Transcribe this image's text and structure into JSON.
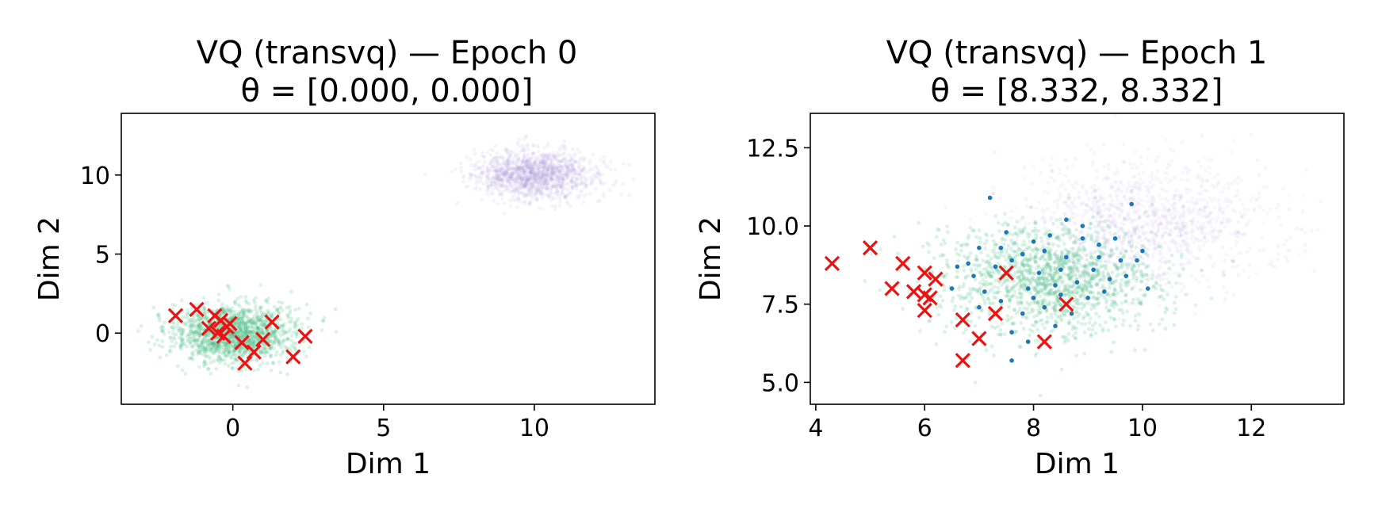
{
  "chart_data": [
    {
      "type": "scatter",
      "title": "VQ (transvq) — Epoch 0",
      "subtitle": "θ = [0.000, 0.000]",
      "xlabel": "Dim 1",
      "ylabel": "Dim 2",
      "xlim": [
        -3.7,
        14.0
      ],
      "ylim": [
        -4.5,
        13.9
      ],
      "xticks": [
        0,
        5,
        10
      ],
      "xtick_labels": [
        "0",
        "5",
        "10"
      ],
      "yticks": [
        0,
        5,
        10
      ],
      "ytick_labels": [
        "0",
        "5",
        "10"
      ],
      "grid": false,
      "colors": {
        "green": "#4cbf85",
        "purple": "#a88fdb",
        "blue": "#1f77b4",
        "red": "#ee1111"
      },
      "clouds": [
        {
          "color": "green",
          "center": [
            0,
            0
          ],
          "spread": [
            1.0,
            0.9
          ],
          "n": 1500,
          "opacity": 0.2
        },
        {
          "color": "purple",
          "center": [
            10,
            10
          ],
          "spread": [
            1.0,
            0.8
          ],
          "n": 1400,
          "opacity": 0.1
        }
      ],
      "blue_points": [],
      "centroids": [
        [
          -1.9,
          1.1
        ],
        [
          -1.2,
          1.5
        ],
        [
          -0.8,
          0.3
        ],
        [
          -0.6,
          1.1
        ],
        [
          -0.5,
          0.0
        ],
        [
          -0.4,
          0.8
        ],
        [
          -0.3,
          -0.2
        ],
        [
          -0.2,
          0.4
        ],
        [
          -0.1,
          0.6
        ],
        [
          0.3,
          -0.6
        ],
        [
          0.4,
          -1.9
        ],
        [
          0.7,
          -1.2
        ],
        [
          1.0,
          -0.4
        ],
        [
          1.3,
          0.7
        ],
        [
          2.0,
          -1.5
        ],
        [
          2.4,
          -0.2
        ]
      ]
    },
    {
      "type": "scatter",
      "title": "VQ (transvq) — Epoch 1",
      "subtitle": "θ = [8.332, 8.332]",
      "xlabel": "Dim 1",
      "ylabel": "Dim 2",
      "xlim": [
        3.9,
        13.7
      ],
      "ylim": [
        4.3,
        13.6
      ],
      "xticks": [
        4,
        6,
        8,
        10,
        12
      ],
      "xtick_labels": [
        "4",
        "6",
        "8",
        "10",
        "12"
      ],
      "yticks": [
        5.0,
        7.5,
        10.0,
        12.5
      ],
      "ytick_labels": [
        "5.0",
        "7.5",
        "10.0",
        "12.5"
      ],
      "grid": false,
      "colors": {
        "green": "#4cbf85",
        "purple": "#a88fdb",
        "blue": "#1f77b4",
        "red": "#ee1111"
      },
      "clouds": [
        {
          "color": "green",
          "center": [
            8.3,
            8.3
          ],
          "spread": [
            1.0,
            0.9
          ],
          "n": 1500,
          "opacity": 0.2
        },
        {
          "color": "purple",
          "center": [
            10,
            10
          ],
          "spread": [
            1.1,
            1.0
          ],
          "n": 1300,
          "opacity": 0.08
        }
      ],
      "blue_points": [
        [
          7.2,
          10.9
        ],
        [
          7.5,
          9.8
        ],
        [
          6.9,
          8.4
        ],
        [
          6.5,
          8.0
        ],
        [
          7.0,
          9.3
        ],
        [
          7.6,
          8.9
        ],
        [
          8.0,
          9.5
        ],
        [
          8.3,
          9.7
        ],
        [
          8.6,
          10.2
        ],
        [
          8.9,
          9.6
        ],
        [
          9.2,
          9.0
        ],
        [
          9.6,
          8.9
        ],
        [
          9.8,
          10.7
        ],
        [
          10.1,
          8.0
        ],
        [
          9.4,
          8.3
        ],
        [
          8.8,
          8.2
        ],
        [
          8.5,
          7.8
        ],
        [
          8.2,
          7.4
        ],
        [
          7.8,
          7.2
        ],
        [
          7.4,
          7.6
        ],
        [
          7.1,
          7.9
        ],
        [
          6.8,
          8.8
        ],
        [
          7.6,
          6.6
        ],
        [
          7.9,
          6.3
        ],
        [
          8.4,
          6.8
        ],
        [
          8.7,
          7.2
        ],
        [
          9.0,
          7.7
        ],
        [
          9.3,
          7.9
        ],
        [
          9.7,
          8.4
        ],
        [
          10.0,
          9.2
        ],
        [
          8.1,
          8.5
        ],
        [
          7.3,
          8.7
        ],
        [
          8.6,
          9.0
        ],
        [
          9.1,
          8.6
        ],
        [
          7.8,
          9.1
        ],
        [
          8.4,
          8.1
        ],
        [
          7.0,
          7.4
        ],
        [
          9.5,
          9.6
        ],
        [
          8.9,
          10.0
        ],
        [
          7.6,
          5.7
        ],
        [
          6.6,
          8.7
        ],
        [
          9.9,
          8.9
        ],
        [
          8.2,
          9.2
        ],
        [
          7.9,
          8.0
        ],
        [
          8.5,
          8.6
        ],
        [
          9.2,
          9.4
        ],
        [
          7.4,
          9.3
        ],
        [
          8.0,
          7.7
        ]
      ],
      "centroids": [
        [
          4.3,
          8.8
        ],
        [
          5.0,
          9.3
        ],
        [
          5.4,
          8.0
        ],
        [
          5.6,
          8.8
        ],
        [
          5.8,
          7.9
        ],
        [
          6.0,
          7.3
        ],
        [
          6.0,
          7.8
        ],
        [
          6.0,
          8.5
        ],
        [
          6.1,
          7.7
        ],
        [
          6.2,
          8.3
        ],
        [
          6.7,
          7.0
        ],
        [
          6.7,
          5.7
        ],
        [
          7.0,
          6.4
        ],
        [
          7.3,
          7.2
        ],
        [
          7.5,
          8.5
        ],
        [
          8.2,
          6.3
        ],
        [
          8.6,
          7.5
        ]
      ]
    }
  ]
}
